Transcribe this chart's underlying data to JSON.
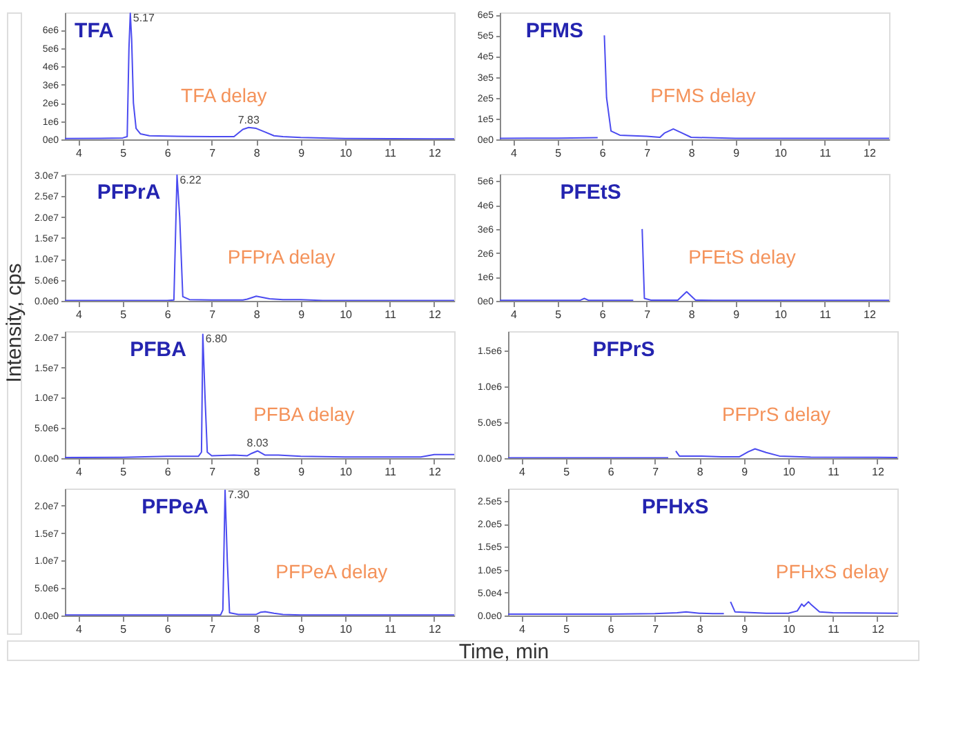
{
  "chart_data": [
    {
      "type": "line",
      "title": "TFA",
      "ylabel": "Intensity, cps",
      "xlabel": "Time, min",
      "xlim": [
        3.7,
        12.45
      ],
      "xticks": [
        4,
        5,
        6,
        7,
        8,
        9,
        10,
        11,
        12
      ],
      "ylim": [
        0,
        6950000
      ],
      "yticks": [
        {
          "value": 0,
          "label": "0e0"
        },
        {
          "value": 1000000,
          "label": "1e6"
        },
        {
          "value": 2000000,
          "label": "2e6"
        },
        {
          "value": 3000000,
          "label": "3e6"
        },
        {
          "value": 4000000,
          "label": "4e6"
        },
        {
          "value": 5000000,
          "label": "5e6"
        },
        {
          "value": 6000000,
          "label": "6e6"
        }
      ],
      "x": [
        3.7,
        4.5,
        5.0,
        5.1,
        5.14,
        5.17,
        5.2,
        5.24,
        5.3,
        5.4,
        5.6,
        6.0,
        6.5,
        7.0,
        7.5,
        7.6,
        7.7,
        7.83,
        8.0,
        8.2,
        8.4,
        8.6,
        9.0,
        9.5,
        10,
        11,
        12,
        12.45
      ],
      "series": [
        {
          "color": "#4b4bf0",
          "values": [
            50000,
            60000,
            80000,
            150000,
            5000000,
            6900000,
            5500000,
            2000000,
            600000,
            300000,
            200000,
            180000,
            160000,
            150000,
            150000,
            350000,
            550000,
            650000,
            600000,
            400000,
            200000,
            150000,
            100000,
            80000,
            50000,
            40000,
            30000,
            30000
          ]
        }
      ],
      "annotations": [
        "TFA delay",
        {
          "text": "5.17",
          "x": 5.17,
          "y": 6900000
        },
        {
          "text": "7.83",
          "x": 7.83,
          "y": 650000
        }
      ]
    },
    {
      "type": "line",
      "title": "PFMS",
      "xlim": [
        3.7,
        12.45
      ],
      "xticks": [
        4,
        5,
        6,
        7,
        8,
        9,
        10,
        11,
        12
      ],
      "ylim": [
        0,
        610000
      ],
      "yticks": [
        {
          "value": 0,
          "label": "0e0"
        },
        {
          "value": 100000,
          "label": "1e5"
        },
        {
          "value": 200000,
          "label": "2e5"
        },
        {
          "value": 300000,
          "label": "3e5"
        },
        {
          "value": 400000,
          "label": "4e5"
        },
        {
          "value": 500000,
          "label": "5e5"
        },
        {
          "value": 600000,
          "label": "6e5"
        }
      ],
      "x": [
        3.7,
        5.0,
        5.9,
        5.95,
        6.0,
        6.05,
        6.1,
        6.2,
        6.4,
        7.0,
        7.3,
        7.4,
        7.6,
        7.8,
        8.0,
        9,
        10,
        12.45
      ],
      "series": [
        {
          "color": "#4b4bf0",
          "values": [
            5000,
            6000,
            8000,
            null,
            null,
            500000,
            200000,
            40000,
            20000,
            15000,
            10000,
            30000,
            50000,
            30000,
            10000,
            5000,
            5000,
            5000
          ]
        }
      ],
      "annotations": [
        "PFMS delay"
      ]
    },
    {
      "type": "line",
      "title": "PFPrA",
      "xlim": [
        3.7,
        12.45
      ],
      "xticks": [
        4,
        5,
        6,
        7,
        8,
        9,
        10,
        11,
        12
      ],
      "ylim": [
        0,
        30300000
      ],
      "yticks": [
        {
          "value": 0,
          "label": "0.0e0"
        },
        {
          "value": 5000000,
          "label": "5.0e6"
        },
        {
          "value": 10000000,
          "label": "1.0e7"
        },
        {
          "value": 15000000,
          "label": "1.5e7"
        },
        {
          "value": 20000000,
          "label": "2.0e7"
        },
        {
          "value": 25000000,
          "label": "2.5e7"
        },
        {
          "value": 30000000,
          "label": "3.0e7"
        }
      ],
      "x": [
        3.7,
        5,
        6.0,
        6.15,
        6.22,
        6.28,
        6.35,
        6.5,
        7,
        7.7,
        7.8,
        8.0,
        8.3,
        8.6,
        9,
        9.5,
        12.45
      ],
      "series": [
        {
          "color": "#4b4bf0",
          "values": [
            100000,
            100000,
            100000,
            200000,
            30000000,
            20000000,
            1000000,
            300000,
            200000,
            200000,
            400000,
            1100000,
            500000,
            300000,
            300000,
            100000,
            100000
          ]
        }
      ],
      "annotations": [
        "PFPrA delay",
        {
          "text": "6.22",
          "x": 6.22,
          "y": 30000000
        }
      ]
    },
    {
      "type": "line",
      "title": "PFEtS",
      "xlim": [
        3.7,
        12.45
      ],
      "xticks": [
        4,
        5,
        6,
        7,
        8,
        9,
        10,
        11,
        12
      ],
      "ylim": [
        0,
        5300000
      ],
      "yticks": [
        {
          "value": 0,
          "label": "0e0"
        },
        {
          "value": 1000000,
          "label": "1e6"
        },
        {
          "value": 2000000,
          "label": "2e6"
        },
        {
          "value": 3000000,
          "label": "3e6"
        },
        {
          "value": 4000000,
          "label": "4e6"
        },
        {
          "value": 5000000,
          "label": "5e6"
        }
      ],
      "x": [
        3.7,
        5.5,
        5.6,
        5.7,
        6.7,
        6.8,
        6.85,
        6.9,
        6.95,
        7.1,
        7.7,
        7.9,
        8.1,
        8.5,
        12.45
      ],
      "series": [
        {
          "color": "#4b4bf0",
          "values": [
            20000,
            20000,
            100000,
            20000,
            20000,
            null,
            null,
            3000000,
            100000,
            30000,
            30000,
            380000,
            30000,
            20000,
            20000
          ]
        }
      ],
      "annotations": [
        "PFEtS delay"
      ]
    },
    {
      "type": "line",
      "title": "PFBA",
      "xlim": [
        3.7,
        12.45
      ],
      "xticks": [
        4,
        5,
        6,
        7,
        8,
        9,
        10,
        11,
        12
      ],
      "ylim": [
        0,
        21000000
      ],
      "yticks": [
        {
          "value": 0,
          "label": "0.0e0"
        },
        {
          "value": 5000000,
          "label": "5.0e6"
        },
        {
          "value": 10000000,
          "label": "1.0e7"
        },
        {
          "value": 15000000,
          "label": "1.5e7"
        },
        {
          "value": 20000000,
          "label": "2.0e7"
        }
      ],
      "x": [
        3.7,
        5,
        6.0,
        6.7,
        6.77,
        6.8,
        6.85,
        6.9,
        7.0,
        7.5,
        7.8,
        7.9,
        8.03,
        8.2,
        8.5,
        9,
        10,
        11,
        11.7,
        12.0,
        12.45
      ],
      "series": [
        {
          "color": "#4b4bf0",
          "values": [
            100000,
            150000,
            300000,
            300000,
            1000000,
            20500000,
            10000000,
            1000000,
            400000,
            500000,
            400000,
            800000,
            1200000,
            500000,
            500000,
            300000,
            200000,
            200000,
            200000,
            600000,
            600000
          ]
        }
      ],
      "annotations": [
        "PFBA delay",
        {
          "text": "6.80",
          "x": 6.8,
          "y": 20500000
        },
        {
          "text": "8.03",
          "x": 8.03,
          "y": 1200000
        }
      ]
    },
    {
      "type": "line",
      "title": "PFPrS",
      "xlim": [
        3.7,
        12.45
      ],
      "xticks": [
        4,
        5,
        6,
        7,
        8,
        9,
        10,
        11,
        12
      ],
      "ylim": [
        0,
        1770000
      ],
      "yticks": [
        {
          "value": 0,
          "label": "0.0e0"
        },
        {
          "value": 500000,
          "label": "5.0e5"
        },
        {
          "value": 1000000,
          "label": "1.0e6"
        },
        {
          "value": 1500000,
          "label": "1.5e6"
        }
      ],
      "x": [
        3.7,
        7.3,
        7.37,
        7.42,
        7.47,
        7.55,
        8,
        8.5,
        8.9,
        9.1,
        9.25,
        9.5,
        9.8,
        10.5,
        12.45
      ],
      "series": [
        {
          "color": "#4b4bf0",
          "values": [
            5000,
            5000,
            null,
            null,
            100000,
            30000,
            30000,
            20000,
            20000,
            90000,
            130000,
            80000,
            30000,
            15000,
            10000
          ]
        }
      ],
      "annotations": [
        "PFPrS delay"
      ]
    },
    {
      "type": "line",
      "title": "PFPeA",
      "xlim": [
        3.7,
        12.45
      ],
      "xticks": [
        4,
        5,
        6,
        7,
        8,
        9,
        10,
        11,
        12
      ],
      "ylim": [
        0,
        23100000
      ],
      "yticks": [
        {
          "value": 0,
          "label": "0.0e0"
        },
        {
          "value": 5000000,
          "label": "5.0e6"
        },
        {
          "value": 10000000,
          "label": "1.0e7"
        },
        {
          "value": 15000000,
          "label": "1.5e7"
        },
        {
          "value": 20000000,
          "label": "2.0e7"
        }
      ],
      "x": [
        3.7,
        6,
        7.2,
        7.25,
        7.3,
        7.35,
        7.4,
        7.6,
        8.0,
        8.1,
        8.2,
        8.4,
        8.6,
        9,
        12.45
      ],
      "series": [
        {
          "color": "#4b4bf0",
          "values": [
            100000,
            100000,
            100000,
            1000000,
            22800000,
            10000000,
            500000,
            200000,
            200000,
            600000,
            700000,
            400000,
            200000,
            100000,
            100000
          ]
        }
      ],
      "annotations": [
        "PFPeA delay",
        {
          "text": "7.30",
          "x": 7.3,
          "y": 22800000
        }
      ]
    },
    {
      "type": "line",
      "title": "PFHxS",
      "xlim": [
        3.7,
        12.45
      ],
      "xticks": [
        4,
        5,
        6,
        7,
        8,
        9,
        10,
        11,
        12
      ],
      "ylim": [
        0,
        277000
      ],
      "yticks": [
        {
          "value": 0,
          "label": "0.0e0"
        },
        {
          "value": 50000,
          "label": "5.0e4"
        },
        {
          "value": 100000,
          "label": "1.0e5"
        },
        {
          "value": 150000,
          "label": "1.5e5"
        },
        {
          "value": 200000,
          "label": "2.0e5"
        },
        {
          "value": 250000,
          "label": "2.5e5"
        }
      ],
      "x": [
        3.7,
        6,
        7,
        7.5,
        7.7,
        8.0,
        8.3,
        8.55,
        8.58,
        8.65,
        8.7,
        8.8,
        9.5,
        10.0,
        10.2,
        10.3,
        10.35,
        10.45,
        10.5,
        10.7,
        11,
        12.45
      ],
      "series": [
        {
          "color": "#4b4bf0",
          "values": [
            3000,
            3000,
            4000,
            6000,
            8000,
            5000,
            4000,
            4000,
            null,
            null,
            30000,
            8000,
            5000,
            5000,
            10000,
            25000,
            20000,
            30000,
            25000,
            8000,
            6000,
            5000
          ]
        }
      ],
      "annotations": [
        "PFHxS delay"
      ]
    }
  ]
}
